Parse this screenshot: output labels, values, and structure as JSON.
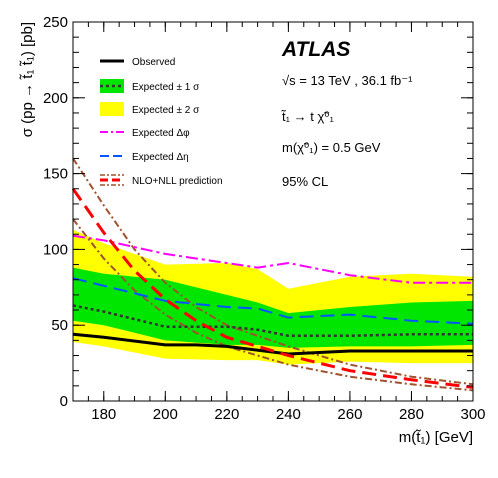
{
  "chart_data": {
    "type": "line",
    "xlabel": "m(t̃₁) [GeV]",
    "ylabel": "σ (pp → t̃₁ t̃₁) [pb]",
    "xlim": [
      170,
      300
    ],
    "ylim": [
      0,
      250
    ],
    "xticks": [
      180,
      200,
      220,
      240,
      260,
      280,
      300
    ],
    "yticks": [
      0,
      50,
      100,
      150,
      200,
      250
    ],
    "colors": {
      "observed": "#000000",
      "band1": "#00e600",
      "band2": "#ffff00",
      "expected": "#333333",
      "dphi": "#ff00ff",
      "deta": "#0055ff",
      "theory": "#ff0000",
      "theory_err": "#a0522d"
    },
    "series": [
      {
        "name": "Observed",
        "x": [
          170,
          180,
          200,
          210,
          220,
          240,
          260,
          300
        ],
        "values": [
          44,
          42,
          37,
          37,
          36,
          31,
          33,
          33
        ]
      },
      {
        "name": "Expected ± 1 σ",
        "x": [
          170,
          180,
          200,
          220,
          230,
          240,
          260,
          280,
          300
        ],
        "upper": [
          88,
          84,
          80,
          70,
          65,
          58,
          62,
          65,
          66
        ],
        "lower": [
          53,
          50,
          40,
          37,
          37,
          35,
          36,
          36,
          37
        ]
      },
      {
        "name": "Expected ± 2 σ",
        "x": [
          170,
          180,
          200,
          220,
          230,
          240,
          260,
          280,
          300
        ],
        "upper": [
          113,
          104,
          90,
          91,
          87,
          74,
          82,
          84,
          82
        ],
        "lower": [
          39,
          36,
          28,
          27,
          27,
          24,
          26,
          25,
          25
        ]
      },
      {
        "name": "Expected",
        "x": [
          170,
          180,
          200,
          220,
          230,
          240,
          260,
          280,
          300
        ],
        "values": [
          63,
          59,
          49,
          49,
          47,
          43,
          43,
          44,
          44
        ]
      },
      {
        "name": "Expected Δφ",
        "x": [
          170,
          180,
          200,
          220,
          230,
          240,
          260,
          280,
          300
        ],
        "values": [
          109,
          106,
          97,
          91,
          88,
          91,
          83,
          78,
          78
        ]
      },
      {
        "name": "Expected Δη",
        "x": [
          170,
          180,
          200,
          220,
          230,
          240,
          260,
          280,
          300
        ],
        "values": [
          81,
          76,
          66,
          62,
          61,
          55,
          57,
          53,
          51
        ]
      },
      {
        "name": "NLO+NLL prediction",
        "x": [
          170,
          180,
          190,
          200,
          210,
          220,
          240,
          260,
          280,
          300
        ],
        "values": [
          140,
          111,
          86,
          67,
          53,
          42,
          30,
          20,
          14,
          9
        ]
      }
    ],
    "theory_band": {
      "x": [
        170,
        180,
        190,
        200,
        210,
        220,
        240,
        260,
        280,
        300
      ],
      "upper": [
        160,
        129,
        100,
        78,
        62,
        50,
        36,
        24,
        16,
        11
      ],
      "lower": [
        120,
        94,
        73,
        57,
        45,
        36,
        24,
        16,
        11,
        7
      ]
    },
    "legend": {
      "placement": "top-left",
      "entries": [
        "Observed",
        "Expected ± 1 σ",
        "Expected ± 2 σ",
        "Expected Δφ",
        "Expected Δη",
        "NLO+NLL prediction"
      ]
    },
    "annotations": {
      "brand": "ATLAS",
      "energy": "√s = 13 TeV , 36.1 fb⁻¹",
      "decay": "t̃₁ → t χ̃⁰₁",
      "mass": "m(χ̃⁰₁) = 0.5 GeV",
      "cl": "95% CL"
    },
    "grid": false
  }
}
